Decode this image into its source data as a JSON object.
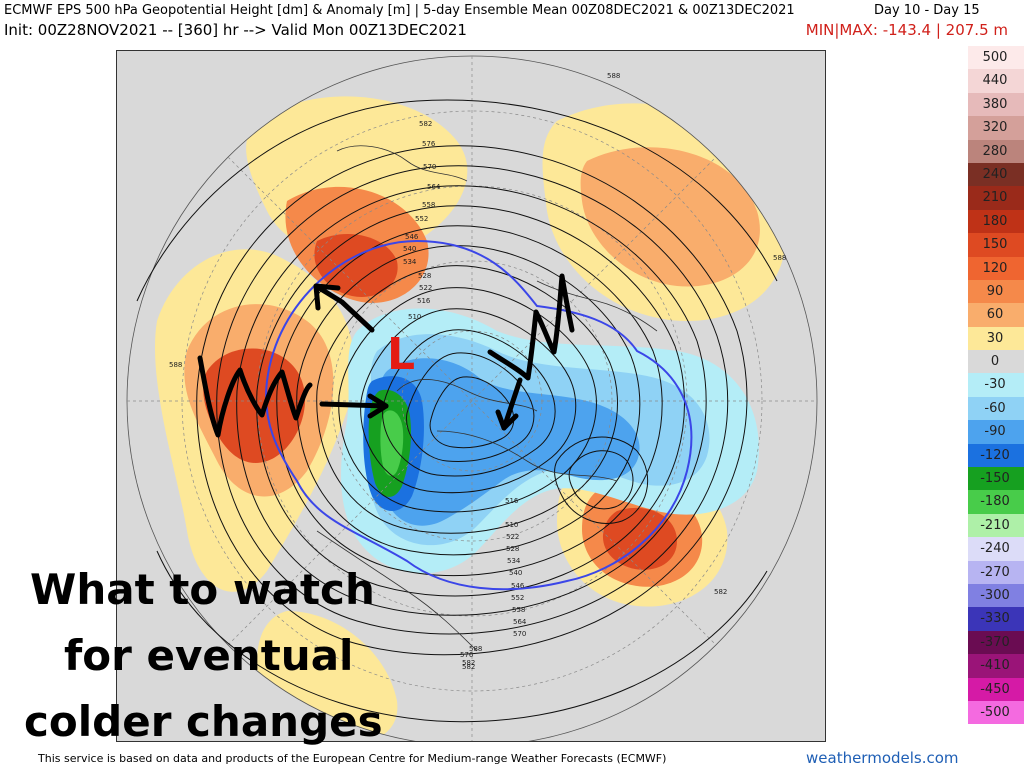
{
  "header": {
    "title": "ECMWF EPS 500 hPa Geopotential Height [dm] & Anomaly [m] | 5-day Ensemble Mean 00Z08DEC2021 & 00Z13DEC2021",
    "days": "Day 10 - Day 15",
    "init_line": "Init: 00Z28NOV2021 -- [360] hr --> Valid Mon 00Z13DEC2021",
    "minmax": "MIN|MAX: -143.4 | 207.5 m"
  },
  "legend": {
    "items": [
      {
        "label": "500",
        "color": "#fdeaea"
      },
      {
        "label": "440",
        "color": "#f4d6d6"
      },
      {
        "label": "380",
        "color": "#e6baba"
      },
      {
        "label": "320",
        "color": "#d4a09a"
      },
      {
        "label": "280",
        "color": "#bb847c"
      },
      {
        "label": "240",
        "color": "#7a2f24"
      },
      {
        "label": "210",
        "color": "#9a2a1a"
      },
      {
        "label": "180",
        "color": "#bf3217"
      },
      {
        "label": "150",
        "color": "#de4a22"
      },
      {
        "label": "120",
        "color": "#ef6530"
      },
      {
        "label": "90",
        "color": "#f5894a"
      },
      {
        "label": "60",
        "color": "#f9ad6c"
      },
      {
        "label": "30",
        "color": "#fde898"
      },
      {
        "label": "0",
        "color": "#d9d9d9"
      },
      {
        "label": "-30",
        "color": "#b4edf7"
      },
      {
        "label": "-60",
        "color": "#8fd2f5"
      },
      {
        "label": "-90",
        "color": "#4da3ee"
      },
      {
        "label": "-120",
        "color": "#1b71e0"
      },
      {
        "label": "-150",
        "color": "#16a020"
      },
      {
        "label": "-180",
        "color": "#48cc4a"
      },
      {
        "label": "-210",
        "color": "#aef0a8"
      },
      {
        "label": "-240",
        "color": "#dcdcf8"
      },
      {
        "label": "-270",
        "color": "#b7b4f2"
      },
      {
        "label": "-300",
        "color": "#8080e2"
      },
      {
        "label": "-330",
        "color": "#3b35b8"
      },
      {
        "label": "-370",
        "color": "#6a0c52"
      },
      {
        "label": "-410",
        "color": "#9a1478"
      },
      {
        "label": "-450",
        "color": "#d51aa6"
      },
      {
        "label": "-500",
        "color": "#f46ae0"
      }
    ]
  },
  "map": {
    "contour_labels": [
      "588",
      "582",
      "576",
      "570",
      "564",
      "558",
      "552",
      "546",
      "540",
      "534",
      "528",
      "522",
      "516",
      "510",
      "588",
      "588",
      "582",
      "582",
      "588",
      "516",
      "510",
      "522",
      "528",
      "534",
      "540",
      "546",
      "552",
      "558",
      "564",
      "570",
      "576",
      "582"
    ],
    "low_symbol": "L"
  },
  "caption": {
    "line1": "What to watch",
    "line2": "for eventual",
    "line3": "colder changes"
  },
  "footer": {
    "credit": "This service is based on data and products of the European Centre for Medium-range Weather Forecasts (ECMWF)",
    "brand": "weathermodels.com"
  },
  "colors": {
    "height_contour": "#111111",
    "polar_contour": "#3b46e8",
    "annotation": "#000000",
    "low_symbol": "#e41b13"
  }
}
